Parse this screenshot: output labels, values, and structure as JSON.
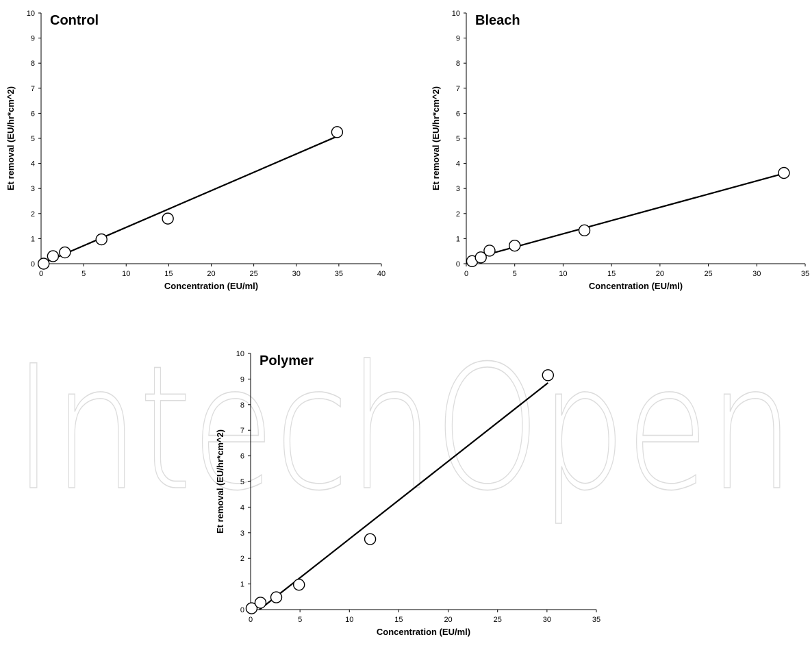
{
  "watermark": "IntechOpen",
  "chart_data": [
    {
      "type": "scatter",
      "title": "Control",
      "xlabel": "Concentration (EU/ml)",
      "ylabel": "Et removal (EU/hr*cm^2)",
      "xlim": [
        0,
        40
      ],
      "ylim": [
        0,
        10
      ],
      "xticks": [
        0,
        5,
        10,
        15,
        20,
        25,
        30,
        35,
        40
      ],
      "yticks": [
        0,
        1,
        2,
        3,
        4,
        5,
        6,
        7,
        8,
        9,
        10
      ],
      "points": [
        {
          "x": 0.3,
          "y": 0.0
        },
        {
          "x": 1.4,
          "y": 0.3
        },
        {
          "x": 2.8,
          "y": 0.45
        },
        {
          "x": 7.1,
          "y": 0.97
        },
        {
          "x": 14.9,
          "y": 1.8
        },
        {
          "x": 34.8,
          "y": 5.25
        }
      ],
      "trendline": {
        "x": [
          0.3,
          34.8
        ],
        "y": [
          0.03,
          5.08
        ]
      },
      "grid": false
    },
    {
      "type": "scatter",
      "title": "Bleach",
      "xlabel": "Concentration (EU/ml)",
      "ylabel": "Et removal (EU/hr*cm^2)",
      "xlim": [
        0,
        35
      ],
      "ylim": [
        0,
        10
      ],
      "xticks": [
        0,
        5,
        10,
        15,
        20,
        25,
        30,
        35
      ],
      "yticks": [
        0,
        1,
        2,
        3,
        4,
        5,
        6,
        7,
        8,
        9,
        10
      ],
      "points": [
        {
          "x": 0.6,
          "y": 0.1
        },
        {
          "x": 1.5,
          "y": 0.25
        },
        {
          "x": 2.4,
          "y": 0.52
        },
        {
          "x": 5.0,
          "y": 0.72
        },
        {
          "x": 12.2,
          "y": 1.33
        },
        {
          "x": 32.8,
          "y": 3.62
        }
      ],
      "trendline": {
        "x": [
          0.6,
          32.8
        ],
        "y": [
          0.2,
          3.6
        ]
      },
      "grid": false
    },
    {
      "type": "scatter",
      "title": "Polymer",
      "xlabel": "Concentration (EU/ml)",
      "ylabel": "Et removal (EU/hr*cm^2)",
      "xlim": [
        0,
        35
      ],
      "ylim": [
        0,
        10
      ],
      "xticks": [
        0,
        5,
        10,
        15,
        20,
        25,
        30,
        35
      ],
      "yticks": [
        0,
        1,
        2,
        3,
        4,
        5,
        6,
        7,
        8,
        9,
        10
      ],
      "points": [
        {
          "x": 0.1,
          "y": 0.05
        },
        {
          "x": 1.0,
          "y": 0.27
        },
        {
          "x": 2.6,
          "y": 0.48
        },
        {
          "x": 4.9,
          "y": 0.97
        },
        {
          "x": 12.1,
          "y": 2.75
        },
        {
          "x": 30.1,
          "y": 9.15
        }
      ],
      "trendline": {
        "x": [
          0.9,
          30.1
        ],
        "y": [
          0.0,
          8.85
        ]
      },
      "grid": false
    }
  ]
}
